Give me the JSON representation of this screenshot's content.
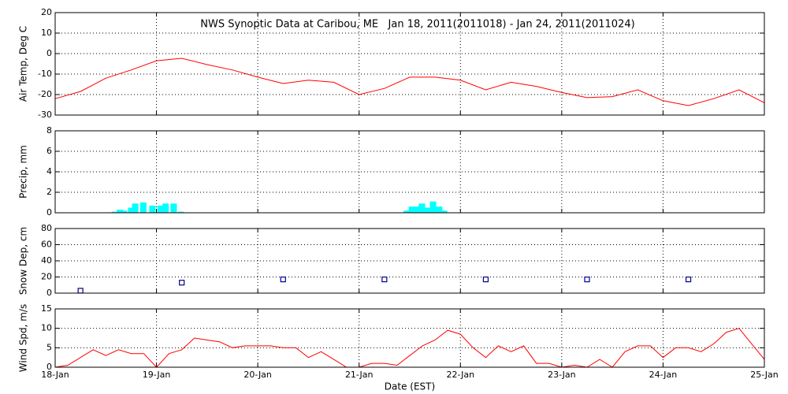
{
  "chart_data": [
    {
      "type": "line",
      "title": "NWS Synoptic Data at Caribou, ME   Jan 18, 2011(2011018) - Jan 24, 2011(2011024)",
      "ylabel": "Air Temp, Deg C",
      "color": "#ff0000",
      "x": [
        0,
        0.25,
        0.5,
        0.75,
        1,
        1.25,
        1.5,
        1.75,
        2,
        2.25,
        2.5,
        2.75,
        3,
        3.25,
        3.5,
        3.75,
        4,
        4.25,
        4.5,
        4.75,
        5,
        5.25,
        5.5,
        5.75,
        6,
        6.25,
        6.5,
        6.75,
        7
      ],
      "values": [
        -22,
        -18.5,
        -12,
        -8,
        -3.5,
        -2.3,
        -5.4,
        -8,
        -11.5,
        -14.6,
        -13,
        -14,
        -20,
        -17,
        -11.5,
        -11.5,
        -13,
        -17.7,
        -14,
        -16,
        -19,
        -21.5,
        -21,
        -17.7,
        -23,
        -25.4,
        -22,
        -17.7,
        -24
      ],
      "xlim": [
        0,
        7
      ],
      "xticks": [
        0,
        1,
        2,
        3,
        4,
        5,
        6,
        7
      ],
      "ylim": [
        -30,
        20
      ],
      "yticks": [
        -30,
        -20,
        -10,
        0,
        10,
        20
      ],
      "grid": true
    },
    {
      "type": "bar",
      "ylabel": "Precip, mm",
      "color": "#00ffff",
      "x": [
        0.59,
        0.64,
        0.68,
        0.75,
        0.79,
        0.87,
        0.96,
        1.04,
        1.09,
        1.17,
        1.24,
        3.47,
        3.52,
        3.58,
        3.62,
        3.67,
        3.73,
        3.79,
        3.84
      ],
      "values": [
        0.1,
        0.3,
        0.2,
        0.5,
        0.9,
        1.0,
        0.7,
        0.7,
        0.9,
        0.9,
        0.1,
        0.2,
        0.6,
        0.6,
        0.9,
        0.5,
        1.1,
        0.6,
        0.2
      ],
      "xlim": [
        0,
        7
      ],
      "xticks": [
        0,
        1,
        2,
        3,
        4,
        5,
        6,
        7
      ],
      "ylim": [
        0,
        8
      ],
      "yticks": [
        0,
        2,
        4,
        6,
        8
      ],
      "grid": true
    },
    {
      "type": "scatter",
      "ylabel": "Snow Dep, cm",
      "color": "#00008b",
      "x": [
        0.25,
        1.25,
        2.25,
        3.25,
        4.25,
        5.25,
        6.25
      ],
      "values": [
        3,
        13,
        17,
        17,
        17,
        17,
        17
      ],
      "xlim": [
        0,
        7
      ],
      "xticks": [
        0,
        1,
        2,
        3,
        4,
        5,
        6,
        7
      ],
      "ylim": [
        0,
        80
      ],
      "yticks": [
        0,
        20,
        40,
        60,
        80
      ],
      "grid": true
    },
    {
      "type": "line",
      "ylabel": "Wind Spd, m/s",
      "xlabel": "Date (EST)",
      "color": "#ff0000",
      "x": [
        0,
        0.125,
        0.25,
        0.375,
        0.5,
        0.625,
        0.75,
        0.875,
        1,
        1.125,
        1.25,
        1.375,
        1.5,
        1.625,
        1.75,
        1.875,
        2,
        2.125,
        2.25,
        2.375,
        2.5,
        2.625,
        2.75,
        2.875,
        3,
        3.125,
        3.25,
        3.375,
        3.5,
        3.625,
        3.75,
        3.875,
        4,
        4.125,
        4.25,
        4.375,
        4.5,
        4.625,
        4.75,
        4.875,
        5,
        5.125,
        5.25,
        5.375,
        5.5,
        5.625,
        5.75,
        5.875,
        6,
        6.125,
        6.25,
        6.375,
        6.5,
        6.625,
        6.75,
        6.875,
        7
      ],
      "values": [
        0,
        0.5,
        2.5,
        4.5,
        3,
        4.5,
        3.5,
        3.5,
        0,
        3.5,
        4.5,
        7.5,
        7,
        6.5,
        5,
        5.5,
        5.5,
        5.5,
        5,
        5,
        2.5,
        4,
        2,
        0,
        0,
        1,
        1,
        0.5,
        3,
        5.5,
        7,
        9.5,
        8.5,
        5,
        2.5,
        5.5,
        4,
        5.5,
        1,
        1,
        0,
        0.5,
        0,
        2,
        0,
        4,
        5.5,
        5.5,
        2.5,
        5,
        5,
        4,
        6,
        9,
        10,
        6,
        2
      ],
      "xlim": [
        0,
        7
      ],
      "xticks": [
        {
          "value": 0,
          "label": "18-Jan"
        },
        {
          "value": 1,
          "label": "19-Jan"
        },
        {
          "value": 2,
          "label": "20-Jan"
        },
        {
          "value": 3,
          "label": "21-Jan"
        },
        {
          "value": 4,
          "label": "22-Jan"
        },
        {
          "value": 5,
          "label": "23-Jan"
        },
        {
          "value": 6,
          "label": "24-Jan"
        },
        {
          "value": 7,
          "label": "25-Jan"
        }
      ],
      "ylim": [
        0,
        15
      ],
      "yticks": [
        0,
        5,
        10,
        15
      ],
      "grid": true
    }
  ]
}
